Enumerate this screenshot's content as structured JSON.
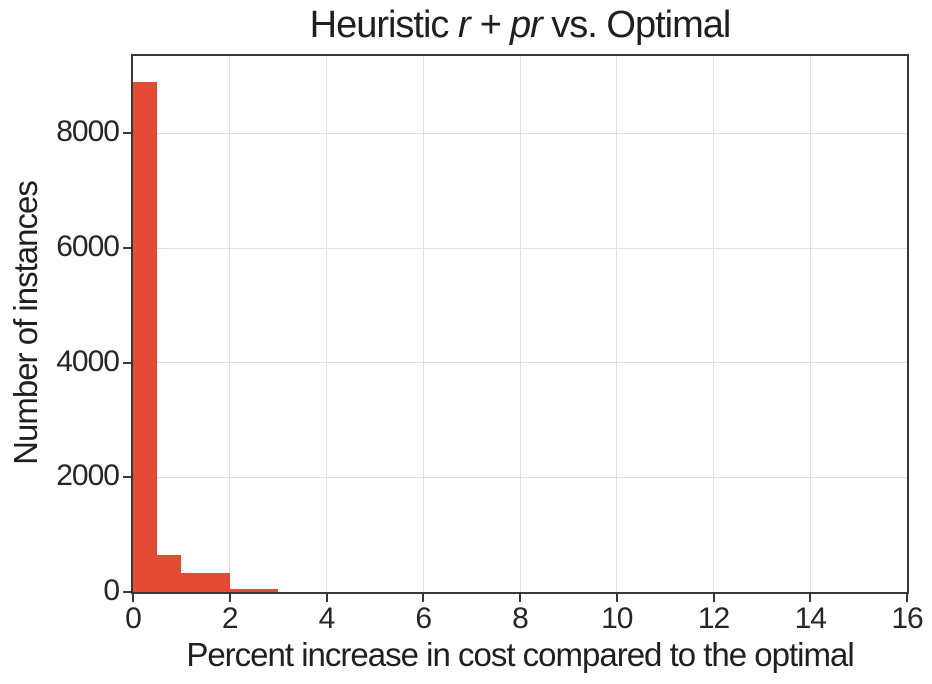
{
  "title": {
    "prefix": "Heuristic ",
    "math": "r + pr",
    "suffix": " vs. Optimal"
  },
  "colors": {
    "bar": "#e24a33",
    "spine": "#383838",
    "grid": "#e0e0e0",
    "text": "#262626",
    "background": "#ffffff"
  },
  "chart_data": {
    "type": "bar",
    "subtype": "histogram",
    "title": "Heuristic r + pr vs. Optimal",
    "xlabel": "Percent increase in cost compared to the optimal",
    "ylabel": "Number of instances",
    "xlim": [
      0,
      16
    ],
    "ylim": [
      0,
      9350
    ],
    "x_ticks": [
      0,
      2,
      4,
      6,
      8,
      10,
      12,
      14,
      16
    ],
    "y_ticks": [
      0,
      2000,
      4000,
      6000,
      8000
    ],
    "grid": true,
    "legend": "none",
    "bar_color": "#e24a33",
    "bin_width": 0.5,
    "bins": [
      {
        "x0": 0.0,
        "x1": 0.5,
        "count": 8900
      },
      {
        "x0": 0.5,
        "x1": 1.0,
        "count": 650
      },
      {
        "x0": 1.0,
        "x1": 1.5,
        "count": 330
      },
      {
        "x0": 1.5,
        "x1": 2.0,
        "count": 330
      },
      {
        "x0": 2.0,
        "x1": 2.5,
        "count": 50
      },
      {
        "x0": 2.5,
        "x1": 3.0,
        "count": 50
      },
      {
        "x0": 3.0,
        "x1": 16.0,
        "count": 0
      }
    ]
  }
}
